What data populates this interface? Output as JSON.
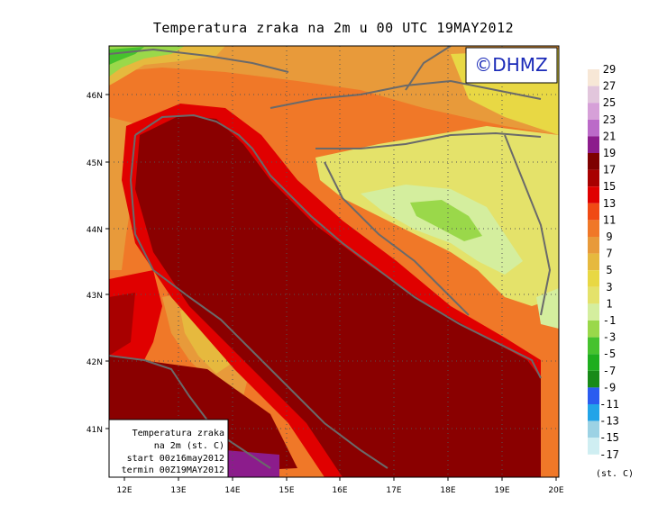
{
  "title": "Temperatura zraka na 2m u 00 UTC 19MAY2012",
  "logo": "©DHMZ",
  "info_box": {
    "line1": "Temperatura zraka",
    "line2": "na 2m (st. C)",
    "line3": "start 00z16may2012",
    "line4": "termin 00Z19MAY2012"
  },
  "lat_labels": [
    "46N",
    "45N",
    "44N",
    "43N",
    "42N",
    "41N"
  ],
  "lon_labels": [
    "12E",
    "13E",
    "14E",
    "15E",
    "16E",
    "17E",
    "18E",
    "19E",
    "20E"
  ],
  "legend": {
    "unit": "(st. C)",
    "labels": [
      "29",
      "27",
      "25",
      "23",
      "21",
      "19",
      "17",
      "15",
      "13",
      "11",
      "9",
      "7",
      "5",
      "3",
      "1",
      "-1",
      "-3",
      "-5",
      "-7",
      "-9",
      "-11",
      "-13",
      "-15",
      "-17"
    ],
    "colors": [
      "#f7e7d6",
      "#e2c6dc",
      "#d6a0d8",
      "#bb6ac8",
      "#8c1c8c",
      "#7e0000",
      "#a80000",
      "#e00000",
      "#f04a14",
      "#f07828",
      "#e89a3a",
      "#e6b93e",
      "#e8d844",
      "#e4e26a",
      "#d4ee9e",
      "#9ad84a",
      "#46c22e",
      "#1eae1e",
      "#188a18",
      "#2a5cf0",
      "#22a4e8",
      "#9cd2e4",
      "#cfeef2"
    ]
  },
  "colors": {
    "sea": "#8a0000",
    "coast_warm": "#a80000",
    "hot": "#e02000",
    "orange": "#f07828",
    "light_orange": "#e89a3a",
    "yellow_orange": "#e6b93e",
    "yellow": "#e8d844",
    "pale_yellow": "#e4e26a",
    "pale_green": "#d4ee9e",
    "green": "#9ad84a",
    "bright_green": "#46c22e",
    "purple": "#8c1c8c",
    "border": "#6a6a6a"
  }
}
